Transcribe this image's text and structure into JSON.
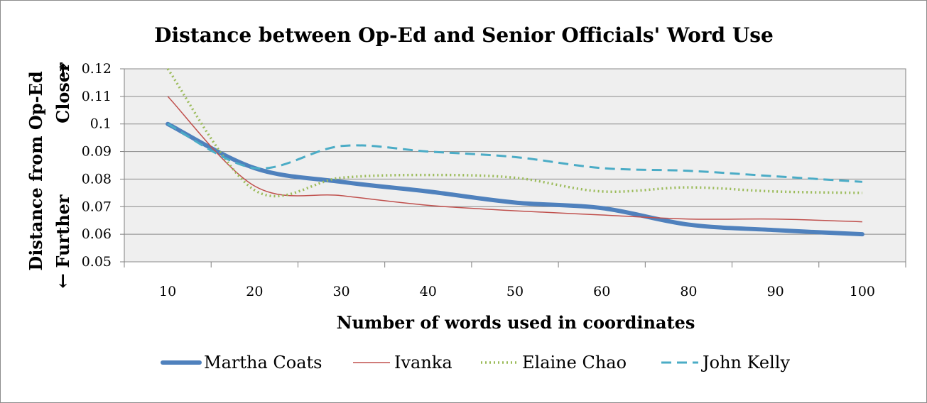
{
  "chart_data": {
    "type": "line",
    "title": "Distance between Op-Ed and Senior Officials' Word Use",
    "xlabel": "Number of words used in coordinates",
    "ylabel": {
      "line1": "Distance from Op-Ed",
      "closer": "Closer",
      "further": "Further",
      "closer_arrow": "→",
      "further_arrow": "←"
    },
    "categories": [
      "10",
      "20",
      "30",
      "40",
      "50",
      "60",
      "80",
      "90",
      "100"
    ],
    "ylim": [
      0.05,
      0.12
    ],
    "yticks": [
      "0.12",
      "0.11",
      "0.1",
      "0.09",
      "0.08",
      "0.07",
      "0.06",
      "0.05"
    ],
    "ytick_values": [
      0.12,
      0.11,
      0.1,
      0.09,
      0.08,
      0.07,
      0.06,
      0.05
    ],
    "grid": true,
    "legend_position": "bottom",
    "series": [
      {
        "name": "Martha Coats",
        "values": [
          0.1,
          0.084,
          0.079,
          0.0755,
          0.0715,
          0.0695,
          0.0635,
          0.0615,
          0.06
        ],
        "color": "#4f81bd",
        "style": "thick"
      },
      {
        "name": "Ivanka",
        "values": [
          0.11,
          0.0775,
          0.074,
          0.0705,
          0.0685,
          0.067,
          0.0655,
          0.0655,
          0.0645
        ],
        "color": "#c0504d",
        "style": "thin"
      },
      {
        "name": "Elaine Chao",
        "values": [
          0.12,
          0.076,
          0.0805,
          0.0815,
          0.0805,
          0.0755,
          0.077,
          0.0755,
          0.075
        ],
        "color": "#9bbb59",
        "style": "dotted"
      },
      {
        "name": "John Kelly",
        "values": [
          0.1,
          0.084,
          0.092,
          0.09,
          0.088,
          0.084,
          0.083,
          0.081,
          0.079
        ],
        "color": "#4bacc6",
        "style": "dashed"
      }
    ]
  }
}
